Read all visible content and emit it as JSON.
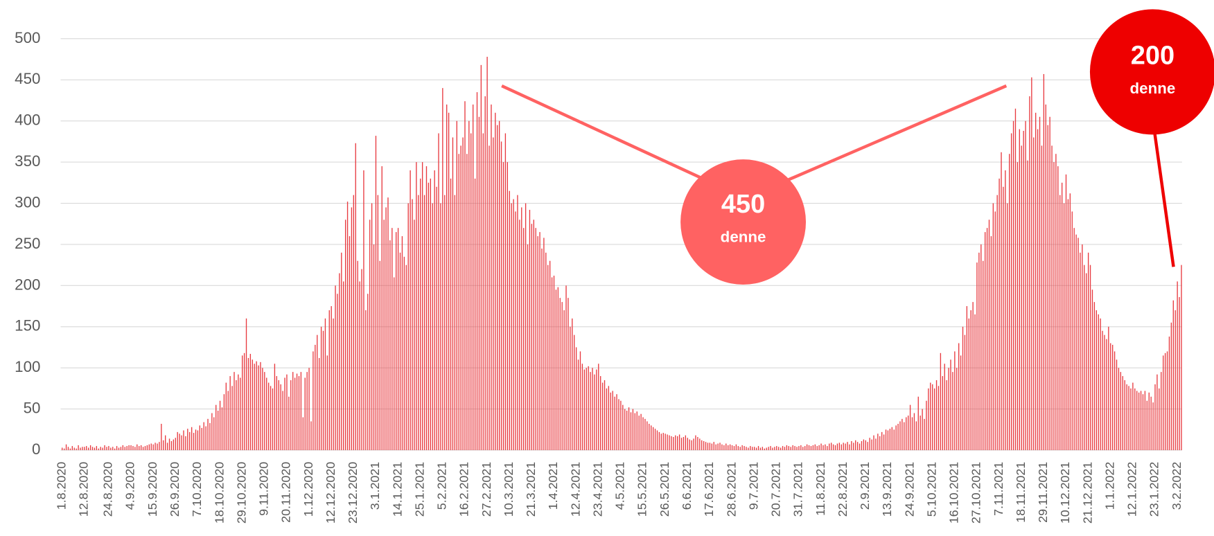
{
  "chart_data": {
    "type": "bar",
    "color": "#e8393f",
    "ylim": [
      0,
      500
    ],
    "yticks": [
      0,
      50,
      100,
      150,
      200,
      250,
      300,
      350,
      400,
      450,
      500
    ],
    "grid": true,
    "annotations": [
      {
        "value": "450",
        "text": "denne",
        "color": "#ff6262"
      },
      {
        "value": "200",
        "text": "denne",
        "color": "#ee0000"
      }
    ],
    "categories": [
      "1.8.2020",
      null,
      null,
      null,
      null,
      null,
      null,
      null,
      null,
      null,
      null,
      "12.8.2020",
      null,
      null,
      null,
      null,
      null,
      null,
      null,
      null,
      null,
      null,
      null,
      "24.8.2020",
      null,
      null,
      null,
      null,
      null,
      null,
      null,
      null,
      null,
      null,
      "4.9.2020",
      null,
      null,
      null,
      null,
      null,
      null,
      null,
      null,
      null,
      null,
      "15.9.2020",
      null,
      null,
      null,
      null,
      null,
      null,
      null,
      null,
      null,
      null,
      "26.9.2020",
      null,
      null,
      null,
      null,
      null,
      null,
      null,
      null,
      null,
      null,
      "7.10.2020",
      null,
      null,
      null,
      null,
      null,
      null,
      null,
      null,
      null,
      null,
      "18.10.2020",
      null,
      null,
      null,
      null,
      null,
      null,
      null,
      null,
      null,
      null,
      "29.10.2020",
      null,
      null,
      null,
      null,
      null,
      null,
      null,
      null,
      null,
      null,
      "9.11.2020",
      null,
      null,
      null,
      null,
      null,
      null,
      null,
      null,
      null,
      null,
      "20.11.2020",
      null,
      null,
      null,
      null,
      null,
      null,
      null,
      null,
      null,
      null,
      "1.12.2020",
      null,
      null,
      null,
      null,
      null,
      null,
      null,
      null,
      null,
      null,
      "12.12.2020",
      null,
      null,
      null,
      null,
      null,
      null,
      null,
      null,
      null,
      null,
      "23.12.2020",
      null,
      null,
      null,
      null,
      null,
      null,
      null,
      null,
      null,
      null,
      "3.1.2021",
      null,
      null,
      null,
      null,
      null,
      null,
      null,
      null,
      null,
      null,
      "14.1.2021",
      null,
      null,
      null,
      null,
      null,
      null,
      null,
      null,
      null,
      null,
      "25.1.2021",
      null,
      null,
      null,
      null,
      null,
      null,
      null,
      null,
      null,
      null,
      "5.2.2021",
      null,
      null,
      null,
      null,
      null,
      null,
      null,
      null,
      null,
      null,
      "16.2.2021",
      null,
      null,
      null,
      null,
      null,
      null,
      null,
      null,
      null,
      null,
      "27.2.2021",
      null,
      null,
      null,
      null,
      null,
      null,
      null,
      null,
      null,
      null,
      "10.3.2021",
      null,
      null,
      null,
      null,
      null,
      null,
      null,
      null,
      null,
      null,
      "21.3.2021",
      null,
      null,
      null,
      null,
      null,
      null,
      null,
      null,
      null,
      null,
      "1.4.2021",
      null,
      null,
      null,
      null,
      null,
      null,
      null,
      null,
      null,
      null,
      "12.4.2021",
      null,
      null,
      null,
      null,
      null,
      null,
      null,
      null,
      null,
      null,
      "23.4.2021",
      null,
      null,
      null,
      null,
      null,
      null,
      null,
      null,
      null,
      null,
      "4.5.2021",
      null,
      null,
      null,
      null,
      null,
      null,
      null,
      null,
      null,
      null,
      "15.5.2021",
      null,
      null,
      null,
      null,
      null,
      null,
      null,
      null,
      null,
      null,
      "26.5.2021",
      null,
      null,
      null,
      null,
      null,
      null,
      null,
      null,
      null,
      null,
      "6.6.2021",
      null,
      null,
      null,
      null,
      null,
      null,
      null,
      null,
      null,
      null,
      "17.6.2021",
      null,
      null,
      null,
      null,
      null,
      null,
      null,
      null,
      null,
      null,
      "28.6.2021",
      null,
      null,
      null,
      null,
      null,
      null,
      null,
      null,
      null,
      null,
      "9.7.2021",
      null,
      null,
      null,
      null,
      null,
      null,
      null,
      null,
      null,
      null,
      "20.7.2021",
      null,
      null,
      null,
      null,
      null,
      null,
      null,
      null,
      null,
      null,
      "31.7.2021",
      null,
      null,
      null,
      null,
      null,
      null,
      null,
      null,
      null,
      null,
      "11.8.2021",
      null,
      null,
      null,
      null,
      null,
      null,
      null,
      null,
      null,
      null,
      "22.8.2021",
      null,
      null,
      null,
      null,
      null,
      null,
      null,
      null,
      null,
      null,
      "2.9.2021",
      null,
      null,
      null,
      null,
      null,
      null,
      null,
      null,
      null,
      null,
      "13.9.2021",
      null,
      null,
      null,
      null,
      null,
      null,
      null,
      null,
      null,
      null,
      "24.9.2021",
      null,
      null,
      null,
      null,
      null,
      null,
      null,
      null,
      null,
      null,
      "5.10.2021",
      null,
      null,
      null,
      null,
      null,
      null,
      null,
      null,
      null,
      null,
      "16.10.2021",
      null,
      null,
      null,
      null,
      null,
      null,
      null,
      null,
      null,
      null,
      "27.10.2021",
      null,
      null,
      null,
      null,
      null,
      null,
      null,
      null,
      null,
      null,
      "7.11.2021",
      null,
      null,
      null,
      null,
      null,
      null,
      null,
      null,
      null,
      null,
      "18.11.2021",
      null,
      null,
      null,
      null,
      null,
      null,
      null,
      null,
      null,
      null,
      "29.11.2021",
      null,
      null,
      null,
      null,
      null,
      null,
      null,
      null,
      null,
      null,
      "10.12.2021",
      null,
      null,
      null,
      null,
      null,
      null,
      null,
      null,
      null,
      null,
      "21.12.2021",
      null,
      null,
      null,
      null,
      null,
      null,
      null,
      null,
      null,
      null,
      "1.1.2022",
      null,
      null,
      null,
      null,
      null,
      null,
      null,
      null,
      null,
      null,
      "12.1.2022",
      null,
      null,
      null,
      null,
      null,
      null,
      null,
      null,
      null,
      null,
      "23.1.2022",
      null,
      null,
      null,
      null,
      null,
      null,
      null,
      null,
      null,
      null,
      "3.2.2022",
      null,
      null
    ],
    "values": [
      3,
      2,
      7,
      4,
      2,
      5,
      3,
      2,
      6,
      3,
      4,
      4,
      5,
      3,
      6,
      4,
      3,
      5,
      2,
      4,
      3,
      6,
      4,
      5,
      3,
      4,
      2,
      5,
      3,
      4,
      6,
      4,
      5,
      6,
      6,
      5,
      4,
      7,
      5,
      6,
      4,
      5,
      6,
      7,
      8,
      7,
      9,
      8,
      10,
      32,
      12,
      18,
      9,
      14,
      11,
      13,
      15,
      22,
      20,
      18,
      24,
      17,
      26,
      22,
      28,
      21,
      25,
      24,
      30,
      27,
      34,
      29,
      38,
      33,
      45,
      40,
      55,
      48,
      60,
      52,
      68,
      82,
      72,
      90,
      78,
      95,
      85,
      92,
      88,
      115,
      118,
      160,
      112,
      117,
      110,
      105,
      108,
      103,
      107,
      100,
      95,
      88,
      82,
      78,
      75,
      105,
      90,
      85,
      80,
      72,
      88,
      92,
      65,
      85,
      95,
      88,
      93,
      90,
      95,
      40,
      88,
      95,
      100,
      35,
      120,
      128,
      140,
      112,
      150,
      145,
      160,
      115,
      170,
      175,
      160,
      200,
      190,
      215,
      240,
      205,
      280,
      302,
      260,
      295,
      310,
      373,
      230,
      205,
      220,
      340,
      170,
      190,
      280,
      300,
      250,
      382,
      310,
      230,
      345,
      280,
      295,
      307,
      255,
      270,
      210,
      265,
      270,
      240,
      260,
      235,
      225,
      300,
      340,
      305,
      280,
      350,
      310,
      330,
      350,
      310,
      345,
      325,
      330,
      300,
      340,
      320,
      385,
      300,
      440,
      310,
      420,
      410,
      330,
      380,
      310,
      400,
      360,
      370,
      380,
      424,
      360,
      400,
      385,
      420,
      330,
      435,
      405,
      468,
      385,
      430,
      478,
      370,
      420,
      380,
      410,
      395,
      400,
      375,
      350,
      385,
      350,
      315,
      300,
      305,
      290,
      310,
      280,
      295,
      270,
      300,
      250,
      292,
      275,
      280,
      270,
      260,
      265,
      245,
      258,
      240,
      225,
      230,
      210,
      212,
      195,
      198,
      185,
      180,
      170,
      200,
      185,
      150,
      160,
      140,
      125,
      110,
      120,
      105,
      98,
      100,
      102,
      95,
      100,
      92,
      98,
      105,
      90,
      82,
      85,
      75,
      78,
      70,
      72,
      65,
      68,
      62,
      60,
      55,
      50,
      48,
      52,
      46,
      50,
      45,
      47,
      42,
      44,
      40,
      38,
      35,
      32,
      30,
      28,
      26,
      24,
      22,
      20,
      21,
      20,
      19,
      18,
      17,
      16,
      18,
      17,
      19,
      15,
      16,
      18,
      15,
      13,
      12,
      14,
      18,
      16,
      14,
      12,
      11,
      10,
      9,
      9,
      8,
      10,
      7,
      8,
      9,
      7,
      6,
      8,
      6,
      7,
      6,
      5,
      7,
      5,
      4,
      6,
      5,
      4,
      3,
      5,
      4,
      4,
      3,
      5,
      3,
      4,
      2,
      3,
      4,
      5,
      3,
      4,
      5,
      4,
      3,
      5,
      4,
      6,
      5,
      4,
      6,
      5,
      4,
      5,
      6,
      4,
      5,
      7,
      6,
      5,
      6,
      7,
      5,
      6,
      8,
      6,
      7,
      5,
      8,
      9,
      7,
      6,
      8,
      9,
      7,
      9,
      8,
      10,
      7,
      11,
      9,
      12,
      10,
      8,
      11,
      13,
      12,
      10,
      15,
      13,
      18,
      14,
      20,
      17,
      22,
      19,
      25,
      24,
      26,
      28,
      25,
      30,
      32,
      35,
      38,
      34,
      40,
      42,
      55,
      40,
      45,
      35,
      65,
      42,
      50,
      38,
      60,
      75,
      82,
      80,
      75,
      85,
      78,
      118,
      90,
      105,
      85,
      100,
      110,
      95,
      120,
      100,
      130,
      115,
      150,
      140,
      175,
      160,
      170,
      180,
      165,
      228,
      240,
      250,
      230,
      265,
      270,
      280,
      260,
      300,
      290,
      310,
      330,
      362,
      320,
      340,
      300,
      360,
      385,
      400,
      415,
      350,
      390,
      370,
      388,
      400,
      352,
      430,
      453,
      380,
      410,
      390,
      405,
      370,
      457,
      420,
      395,
      405,
      370,
      350,
      360,
      345,
      310,
      325,
      300,
      335,
      305,
      312,
      290,
      270,
      262,
      258,
      240,
      250,
      225,
      215,
      240,
      225,
      195,
      180,
      170,
      165,
      160,
      145,
      140,
      135,
      150,
      130,
      128,
      120,
      110,
      100,
      95,
      90,
      85,
      80,
      78,
      75,
      82,
      75,
      72,
      70,
      72,
      68,
      72,
      60,
      70,
      65,
      58,
      80,
      92,
      75,
      95,
      115,
      118,
      120,
      138,
      155,
      182,
      170,
      205,
      186,
      225
    ]
  }
}
